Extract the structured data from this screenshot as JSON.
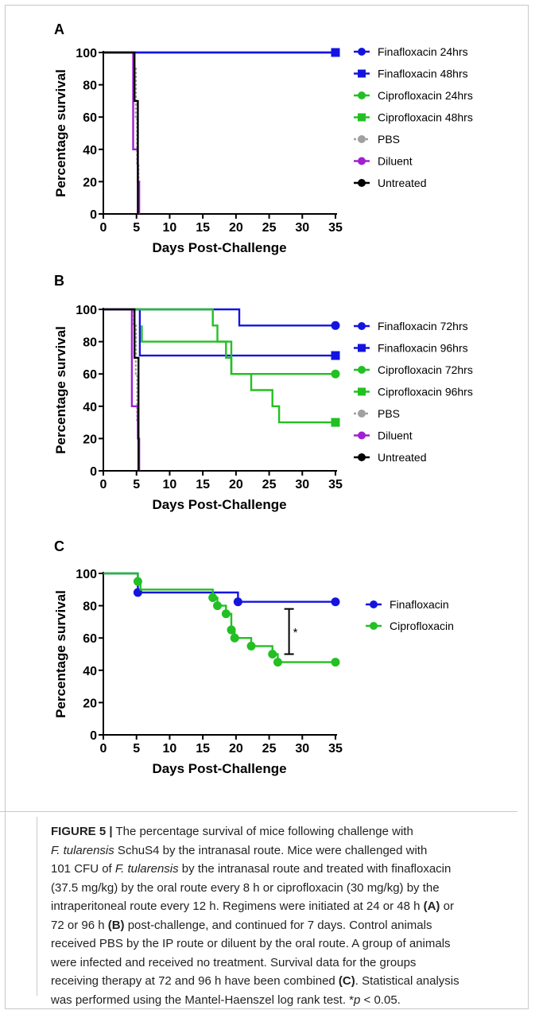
{
  "chart_data": [
    {
      "panel": "A",
      "type": "line",
      "xlabel": "Days Post-Challenge",
      "ylabel": "Percentage survival",
      "xlim": [
        0,
        35
      ],
      "ylim": [
        0,
        100
      ],
      "xticks": [
        "0",
        "5",
        "10",
        "15",
        "20",
        "25",
        "30",
        "35"
      ],
      "yticks": [
        "0",
        "20",
        "40",
        "60",
        "80",
        "100"
      ],
      "legend_position": "right",
      "series": [
        {
          "name": "Finafloxacin 24hrs",
          "color": "#1414e0",
          "marker": "circle",
          "steps": [
            [
              0,
              100
            ],
            [
              35,
              100
            ]
          ],
          "end_marker": false
        },
        {
          "name": "Finafloxacin 48hrs",
          "color": "#1414e0",
          "marker": "square",
          "steps": [
            [
              0,
              100
            ],
            [
              35,
              100
            ]
          ],
          "end_marker": true
        },
        {
          "name": "Ciprofloxacin 24hrs",
          "color": "#22c022",
          "marker": "circle",
          "steps": [],
          "end_marker": false
        },
        {
          "name": "Ciprofloxacin 48hrs",
          "color": "#22c022",
          "marker": "square",
          "steps": [],
          "end_marker": false
        },
        {
          "name": "PBS",
          "color": "#a0a0a0",
          "marker": "circle",
          "dashed": true,
          "steps": [
            [
              0,
              100
            ],
            [
              4.6,
              100
            ],
            [
              4.6,
              90
            ],
            [
              4.9,
              90
            ],
            [
              4.9,
              60
            ],
            [
              5.1,
              60
            ],
            [
              5.1,
              30
            ],
            [
              5.3,
              30
            ],
            [
              5.3,
              0
            ]
          ],
          "end_marker": false
        },
        {
          "name": "Diluent",
          "color": "#a020d0",
          "marker": "circle",
          "steps": [
            [
              0,
              100
            ],
            [
              4.5,
              100
            ],
            [
              4.5,
              40
            ],
            [
              5.2,
              40
            ],
            [
              5.2,
              20
            ],
            [
              5.4,
              20
            ],
            [
              5.4,
              0
            ]
          ],
          "end_marker": false
        },
        {
          "name": "Untreated",
          "color": "#000000",
          "marker": "circle",
          "steps": [
            [
              0,
              100
            ],
            [
              4.7,
              100
            ],
            [
              4.7,
              70
            ],
            [
              5.2,
              70
            ],
            [
              5.2,
              0
            ]
          ],
          "end_marker": false
        }
      ]
    },
    {
      "panel": "B",
      "type": "line",
      "xlabel": "Days Post-Challenge",
      "ylabel": "Percentage survival",
      "xlim": [
        0,
        35
      ],
      "ylim": [
        0,
        100
      ],
      "xticks": [
        "0",
        "5",
        "10",
        "15",
        "20",
        "25",
        "30",
        "35"
      ],
      "yticks": [
        "0",
        "20",
        "40",
        "60",
        "80",
        "100"
      ],
      "legend_position": "right",
      "series": [
        {
          "name": "Finafloxacin 72hrs",
          "color": "#1414e0",
          "marker": "circle",
          "steps": [
            [
              0,
              100
            ],
            [
              20.5,
              100
            ],
            [
              20.5,
              90
            ],
            [
              35,
              90
            ]
          ],
          "end_marker": true
        },
        {
          "name": "Finafloxacin 96hrs",
          "color": "#1414e0",
          "marker": "square",
          "steps": [
            [
              0,
              100
            ],
            [
              5.5,
              100
            ],
            [
              5.5,
              71.4
            ],
            [
              35,
              71.4
            ]
          ],
          "end_marker": true
        },
        {
          "name": "Ciprofloxacin 72hrs",
          "color": "#22c022",
          "marker": "circle",
          "steps": [
            [
              0,
              100
            ],
            [
              16.5,
              100
            ],
            [
              16.5,
              90
            ],
            [
              17.2,
              90
            ],
            [
              17.2,
              80
            ],
            [
              19.3,
              80
            ],
            [
              19.3,
              60
            ],
            [
              35,
              60
            ]
          ],
          "end_marker": true
        },
        {
          "name": "Ciprofloxacin 96hrs",
          "color": "#22c022",
          "marker": "square",
          "steps": [
            [
              5.8,
              90
            ],
            [
              5.8,
              80
            ],
            [
              18.5,
              80
            ],
            [
              18.5,
              70
            ],
            [
              19.3,
              70
            ],
            [
              19.3,
              60
            ],
            [
              22.3,
              60
            ],
            [
              22.3,
              50
            ],
            [
              25.5,
              50
            ],
            [
              25.5,
              40
            ],
            [
              26.5,
              40
            ],
            [
              26.5,
              30
            ],
            [
              35,
              30
            ]
          ],
          "end_marker": true
        },
        {
          "name": "PBS",
          "color": "#a0a0a0",
          "marker": "circle",
          "dashed": true,
          "steps": [
            [
              0,
              100
            ],
            [
              4.6,
              100
            ],
            [
              4.6,
              90
            ],
            [
              4.9,
              90
            ],
            [
              4.9,
              60
            ],
            [
              5.1,
              60
            ],
            [
              5.1,
              30
            ],
            [
              5.3,
              30
            ],
            [
              5.3,
              0
            ]
          ],
          "end_marker": false
        },
        {
          "name": "Diluent",
          "color": "#a020d0",
          "marker": "circle",
          "steps": [
            [
              0,
              100
            ],
            [
              4.3,
              100
            ],
            [
              4.3,
              40
            ],
            [
              5.2,
              40
            ],
            [
              5.2,
              20
            ],
            [
              5.4,
              20
            ],
            [
              5.4,
              0
            ]
          ],
          "end_marker": false
        },
        {
          "name": "Untreated",
          "color": "#000000",
          "marker": "circle",
          "steps": [
            [
              0,
              100
            ],
            [
              4.7,
              100
            ],
            [
              4.7,
              70
            ],
            [
              5.3,
              70
            ],
            [
              5.3,
              0
            ]
          ],
          "end_marker": false
        }
      ]
    },
    {
      "panel": "C",
      "type": "line",
      "xlabel": "Days Post-Challenge",
      "ylabel": "Percentage survival",
      "xlim": [
        0,
        35
      ],
      "ylim": [
        0,
        100
      ],
      "xticks": [
        "0",
        "5",
        "10",
        "15",
        "20",
        "25",
        "30",
        "35"
      ],
      "yticks": [
        "0",
        "20",
        "40",
        "60",
        "80",
        "100"
      ],
      "legend_position": "right",
      "annotation": {
        "text": "*",
        "x": 28,
        "y_low": 50,
        "y_high": 78
      },
      "series": [
        {
          "name": "Finafloxacin",
          "color": "#1414e0",
          "marker": "circle",
          "steps": [
            [
              0,
              100
            ],
            [
              5.2,
              100
            ],
            [
              5.2,
              88.2
            ],
            [
              20.3,
              88.2
            ],
            [
              20.3,
              82.4
            ],
            [
              35,
              82.4
            ]
          ],
          "censored": [
            [
              5.2,
              88.2
            ],
            [
              20.3,
              82.4
            ],
            [
              35,
              82.4
            ]
          ]
        },
        {
          "name": "Ciprofloxacin",
          "color": "#22c022",
          "marker": "circle",
          "steps": [
            [
              0,
              100
            ],
            [
              5.2,
              100
            ],
            [
              5.2,
              95
            ],
            [
              5.6,
              95
            ],
            [
              5.6,
              90
            ],
            [
              16.5,
              90
            ],
            [
              16.5,
              85
            ],
            [
              17.2,
              85
            ],
            [
              17.2,
              80
            ],
            [
              18.5,
              80
            ],
            [
              18.5,
              75
            ],
            [
              19.3,
              75
            ],
            [
              19.3,
              65
            ],
            [
              19.8,
              65
            ],
            [
              19.8,
              60
            ],
            [
              22.3,
              60
            ],
            [
              22.3,
              55
            ],
            [
              25.5,
              55
            ],
            [
              25.5,
              50
            ],
            [
              26.3,
              50
            ],
            [
              26.3,
              45
            ],
            [
              35,
              45
            ]
          ],
          "censored": [
            [
              5.2,
              95
            ],
            [
              16.5,
              85
            ],
            [
              17.2,
              80
            ],
            [
              18.5,
              75
            ],
            [
              19.3,
              65
            ],
            [
              19.8,
              60
            ],
            [
              22.3,
              55
            ],
            [
              25.5,
              50
            ],
            [
              26.3,
              45
            ],
            [
              35,
              45
            ]
          ]
        }
      ]
    }
  ],
  "caption": {
    "figure_label": "FIGURE 5 |",
    "line1": " The percentage survival of mice following challenge with",
    "species": "F. tularensis",
    "line2": " SchuS4 by the intranasal route. Mice were challenged with",
    "line3a": "101 CFU of ",
    "line3b": " by the intranasal route and treated with finafloxacin",
    "line4": "(37.5 mg/kg) by the oral route every 8 h or ciprofloxacin (30 mg/kg) by the",
    "line5": "intraperitoneal route every 12 h. Regimens were initiated at 24 or 48 h ",
    "ref_a": "(A)",
    "line5b": " or",
    "line6a": "72 or 96 h ",
    "ref_b": "(B)",
    "line6b": " post-challenge, and continued for 7 days. Control animals",
    "line7": "received PBS by the IP route or diluent by the oral route. A group of animals",
    "line8": "were infected and received no treatment. Survival data for the groups",
    "line9a": "receiving therapy at 72 and 96 h have been combined ",
    "ref_c": "(C)",
    "line9b": ". Statistical analysis",
    "line10a": "was performed using the Mantel-Haenszel log rank test. *",
    "p_symbol": "p",
    "line10b": " < 0.05."
  }
}
